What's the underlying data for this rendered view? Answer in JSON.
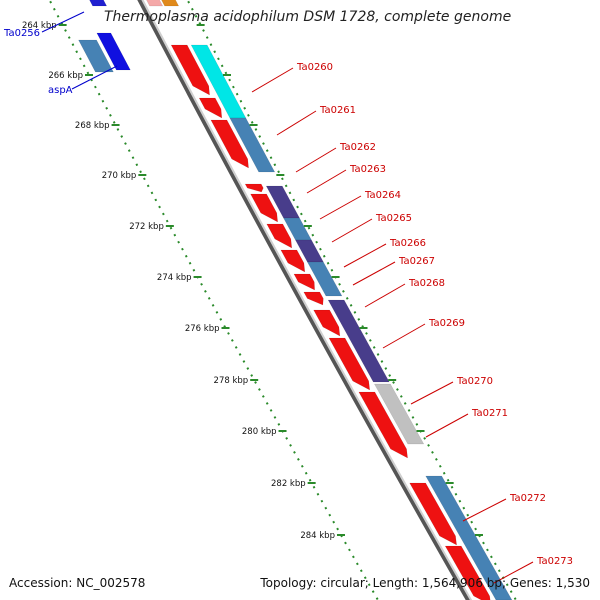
{
  "map": {
    "title": "Thermoplasma acidophilum DSM 1728, complete genome",
    "accession": "Accession: NC_002578",
    "summary": "Topology: circular; Length: 1,564,906 bp; Genes: 1,530",
    "tick_labels": [
      "264 kbp",
      "266 kbp",
      "268 kbp",
      "270 kbp",
      "272 kbp",
      "274 kbp",
      "276 kbp",
      "278 kbp",
      "280 kbp",
      "282 kbp",
      "284 kbp"
    ],
    "colors": {
      "backbone": "#8a8a8a",
      "tick": "#2a8a2a",
      "forward_cds": "#4682b4",
      "reverse_cds": "#ee1111",
      "rna": "#00e6e6",
      "dark_blue": "#483d8b",
      "other": "#c0c0c0",
      "external_label": "#0000cc",
      "gene_label": "#cc0000"
    }
  },
  "genes_external": [
    "Ta0256",
    "aspA"
  ],
  "genes": [
    "Ta0260",
    "Ta0261",
    "Ta0262",
    "Ta0263",
    "Ta0264",
    "Ta0265",
    "Ta0266",
    "Ta0267",
    "Ta0268",
    "Ta0269",
    "Ta0270",
    "Ta0271",
    "Ta0272",
    "Ta0273"
  ]
}
